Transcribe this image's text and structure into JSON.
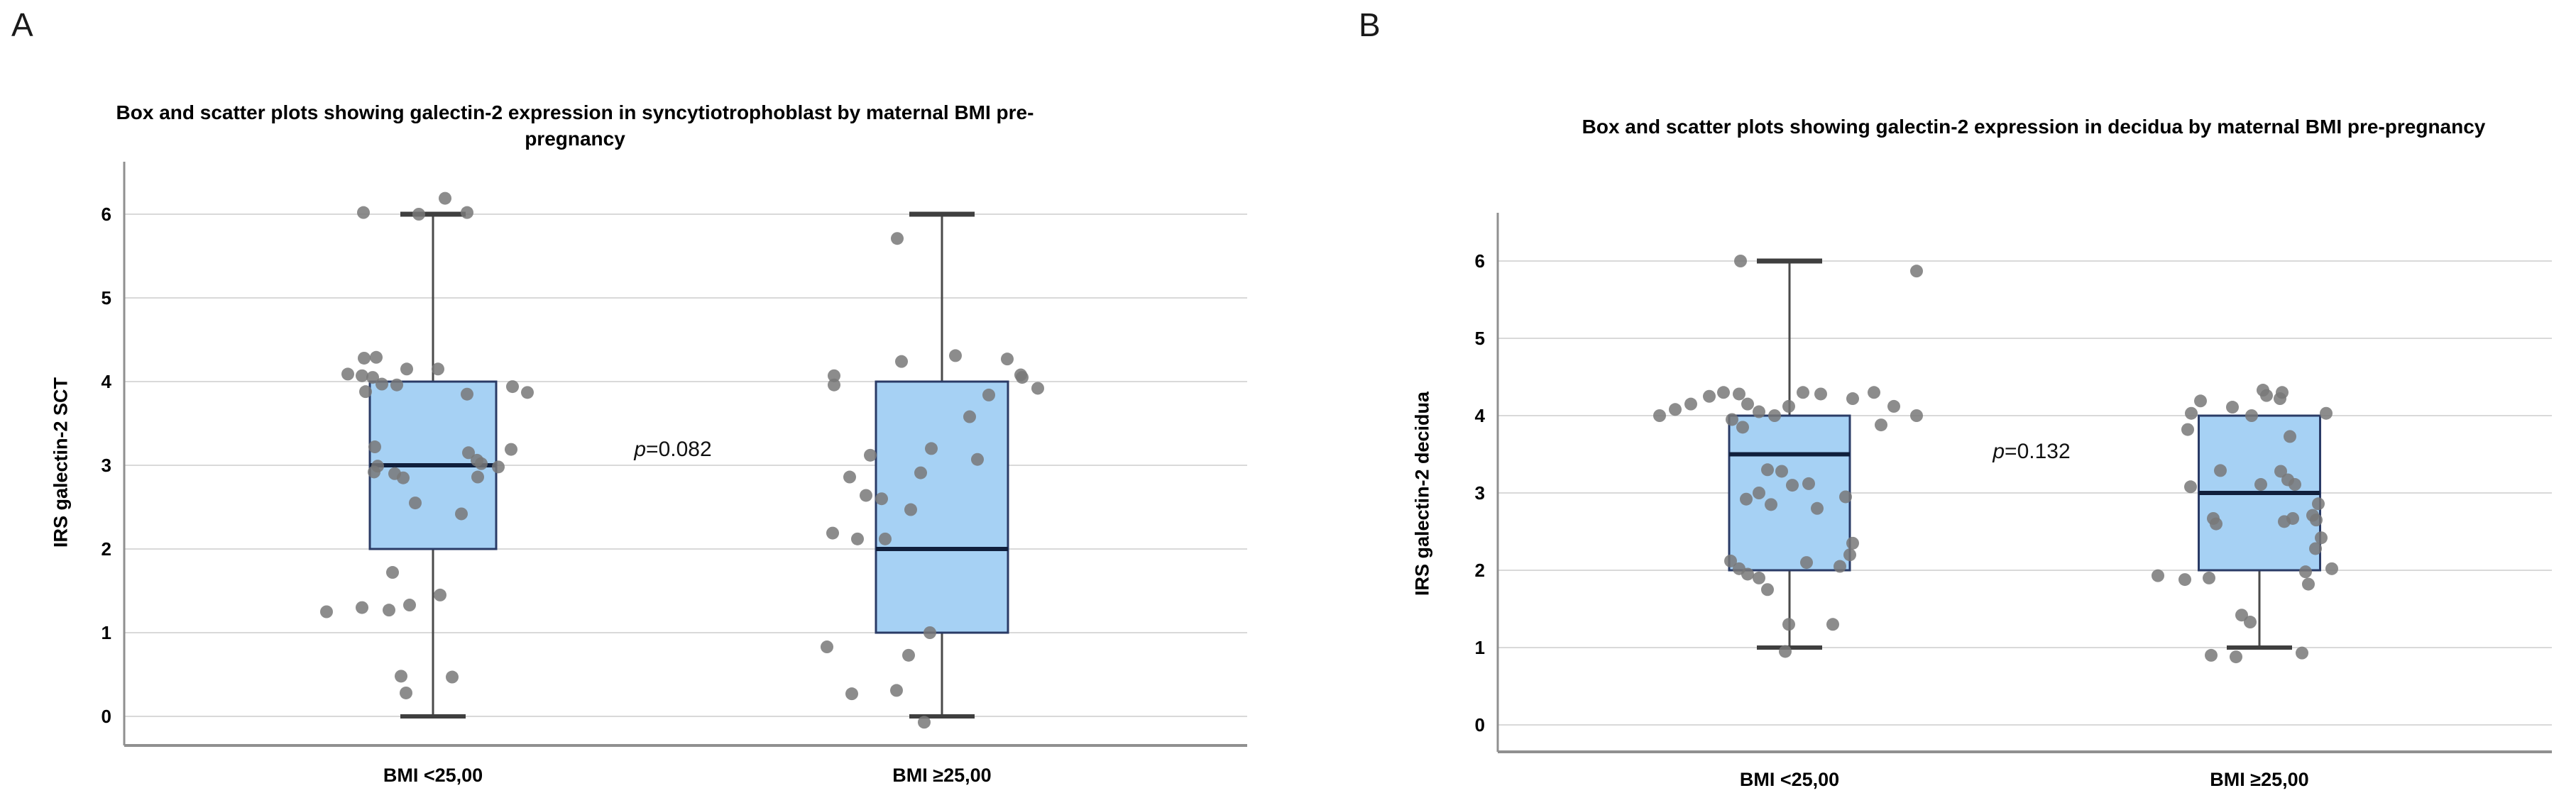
{
  "figure": {
    "background": "#ffffff",
    "panel_letters": [
      "A",
      "B"
    ]
  },
  "colors": {
    "box_fill": "#A6D1F4",
    "box_border": "#2A3B66",
    "median_line": "#101F3C",
    "whisker": "#4A4A4A",
    "whisker_cap": "#3F3F3F",
    "point": "#787878",
    "gridline": "#D9D9D9",
    "axis": "#909090",
    "text": "#000000"
  },
  "chart_data": [
    {
      "type": "box",
      "panel_label": "A",
      "title": "Box and scatter plots showing galectin-2 expression in syncytiotrophoblast by maternal BMI pre-pregnancy",
      "title_lines": [
        "Box and scatter plots showing galectin-2 expression in syncytiotrophoblast by maternal BMI pre-",
        "pregnancy"
      ],
      "ylabel": "IRS galectin-2 SCT",
      "xlabel": "",
      "yticks": [
        0,
        1,
        2,
        3,
        4,
        5,
        6
      ],
      "ylim": [
        0,
        6.6
      ],
      "grid": true,
      "legend": "none",
      "annotation": "p=0.082",
      "categories": [
        "BMI <25,00",
        "BMI ≥25,00"
      ],
      "series": [
        {
          "name": "BMI <25,00",
          "box": {
            "q1": 2,
            "median": 3,
            "q3": 4,
            "whisker_low": 0,
            "whisker_high": 6
          },
          "points": [
            [
              512,
              6.02
            ],
            [
              590,
              6.0
            ],
            [
              627,
              6.19
            ],
            [
              658,
              6.02
            ],
            [
              513,
              4.28
            ],
            [
              530,
              4.29
            ],
            [
              573,
              4.15
            ],
            [
              617,
              4.15
            ],
            [
              490,
              4.09
            ],
            [
              510,
              4.07
            ],
            [
              525,
              4.05
            ],
            [
              538,
              3.97
            ],
            [
              559,
              3.96
            ],
            [
              515,
              3.88
            ],
            [
              658,
              3.85
            ],
            [
              722,
              3.94
            ],
            [
              743,
              3.87
            ],
            [
              528,
              3.22
            ],
            [
              720,
              3.19
            ],
            [
              660,
              3.15
            ],
            [
              672,
              3.06
            ],
            [
              678,
              3.02
            ],
            [
              702,
              2.98
            ],
            [
              532,
              2.99
            ],
            [
              527,
              2.92
            ],
            [
              556,
              2.9
            ],
            [
              568,
              2.85
            ],
            [
              673,
              2.86
            ],
            [
              585,
              2.55
            ],
            [
              650,
              2.42
            ],
            [
              553,
              1.72
            ],
            [
              510,
              1.3
            ],
            [
              548,
              1.27
            ],
            [
              577,
              1.33
            ],
            [
              460,
              1.25
            ],
            [
              620,
              1.45
            ],
            [
              565,
              0.48
            ],
            [
              637,
              0.47
            ],
            [
              572,
              0.28
            ]
          ]
        },
        {
          "name": "BMI ≥25,00",
          "box": {
            "q1": 1,
            "median": 2,
            "q3": 4,
            "whisker_low": 0,
            "whisker_high": 6
          },
          "points": [
            [
              1264,
              5.71
            ],
            [
              1270,
              4.24
            ],
            [
              1346,
              4.31
            ],
            [
              1419,
              4.27
            ],
            [
              1438,
              4.08
            ],
            [
              1175,
              4.07
            ],
            [
              1175,
              3.96
            ],
            [
              1440,
              4.05
            ],
            [
              1462,
              3.92
            ],
            [
              1393,
              3.84
            ],
            [
              1366,
              3.58
            ],
            [
              1312,
              3.2
            ],
            [
              1377,
              3.07
            ],
            [
              1226,
              3.12
            ],
            [
              1297,
              2.91
            ],
            [
              1197,
              2.86
            ],
            [
              1220,
              2.64
            ],
            [
              1242,
              2.6
            ],
            [
              1283,
              2.47
            ],
            [
              1173,
              2.19
            ],
            [
              1208,
              2.12
            ],
            [
              1247,
              2.12
            ],
            [
              1310,
              1.0
            ],
            [
              1165,
              0.83
            ],
            [
              1280,
              0.73
            ],
            [
              1200,
              0.27
            ],
            [
              1263,
              0.31
            ],
            [
              1302,
              -0.07
            ]
          ]
        }
      ]
    },
    {
      "type": "box",
      "panel_label": "B",
      "title": "Box and scatter plots showing galectin-2 expression in decidua by maternal BMI pre-pregnancy",
      "title_lines": [
        "Box and scatter plots showing galectin-2 expression in decidua by maternal BMI pre-pregnancy"
      ],
      "ylabel": "IRS galectin-2 decidua",
      "xlabel": "",
      "yticks": [
        0,
        1,
        2,
        3,
        4,
        5,
        6
      ],
      "ylim": [
        0,
        6.6
      ],
      "grid": true,
      "legend": "none",
      "annotation": "p=0.132",
      "categories": [
        "BMI <25,00",
        "BMI ≥25,00"
      ],
      "series": [
        {
          "name": "BMI <25,00",
          "box": {
            "q1": 2,
            "median": 3.5,
            "q3": 4,
            "whisker_low": 1,
            "whisker_high": 6
          },
          "points": [
            [
              2452,
              6.0
            ],
            [
              2700,
              5.87
            ],
            [
              2338,
              4.0
            ],
            [
              2360,
              4.08
            ],
            [
              2382,
              4.15
            ],
            [
              2408,
              4.25
            ],
            [
              2428,
              4.3
            ],
            [
              2450,
              4.28
            ],
            [
              2462,
              4.15
            ],
            [
              2478,
              4.05
            ],
            [
              2440,
              3.95
            ],
            [
              2500,
              4.0
            ],
            [
              2520,
              4.12
            ],
            [
              2540,
              4.3
            ],
            [
              2565,
              4.28
            ],
            [
              2610,
              4.22
            ],
            [
              2640,
              4.3
            ],
            [
              2668,
              4.12
            ],
            [
              2700,
              4.0
            ],
            [
              2455,
              3.85
            ],
            [
              2650,
              3.88
            ],
            [
              2490,
              3.3
            ],
            [
              2510,
              3.28
            ],
            [
              2525,
              3.1
            ],
            [
              2478,
              3.0
            ],
            [
              2548,
              3.12
            ],
            [
              2460,
              2.92
            ],
            [
              2495,
              2.85
            ],
            [
              2560,
              2.8
            ],
            [
              2600,
              2.95
            ],
            [
              2438,
              2.12
            ],
            [
              2450,
              2.02
            ],
            [
              2462,
              1.95
            ],
            [
              2478,
              1.9
            ],
            [
              2545,
              2.1
            ],
            [
              2592,
              2.05
            ],
            [
              2606,
              2.2
            ],
            [
              2610,
              2.35
            ],
            [
              2490,
              1.75
            ],
            [
              2520,
              1.3
            ],
            [
              2582,
              1.3
            ],
            [
              2515,
              0.95
            ]
          ]
        },
        {
          "name": "BMI ≥25,00",
          "box": {
            "q1": 2,
            "median": 3,
            "q3": 4,
            "whisker_low": 1,
            "whisker_high": null
          },
          "points": [
            [
              3100,
              4.19
            ],
            [
              3087,
              4.03
            ],
            [
              3145,
              4.11
            ],
            [
              3193,
              4.26
            ],
            [
              3212,
              4.22
            ],
            [
              3172,
              4.0
            ],
            [
              3277,
              4.03
            ],
            [
              3188,
              4.33
            ],
            [
              3215,
              4.3
            ],
            [
              3082,
              3.82
            ],
            [
              3226,
              3.73
            ],
            [
              3128,
              3.29
            ],
            [
              3213,
              3.28
            ],
            [
              3223,
              3.17
            ],
            [
              3233,
              3.11
            ],
            [
              3185,
              3.11
            ],
            [
              3086,
              3.08
            ],
            [
              3266,
              2.86
            ],
            [
              3258,
              2.71
            ],
            [
              3230,
              2.67
            ],
            [
              3118,
              2.67
            ],
            [
              3122,
              2.6
            ],
            [
              3218,
              2.63
            ],
            [
              3263,
              2.65
            ],
            [
              3270,
              2.42
            ],
            [
              3262,
              2.28
            ],
            [
              3040,
              1.93
            ],
            [
              3078,
              1.88
            ],
            [
              3112,
              1.9
            ],
            [
              3285,
              2.02
            ],
            [
              3248,
              1.98
            ],
            [
              3158,
              1.42
            ],
            [
              3170,
              1.33
            ],
            [
              3252,
              1.82
            ],
            [
              3115,
              0.9
            ],
            [
              3150,
              0.88
            ],
            [
              3243,
              0.93
            ]
          ]
        }
      ]
    }
  ]
}
